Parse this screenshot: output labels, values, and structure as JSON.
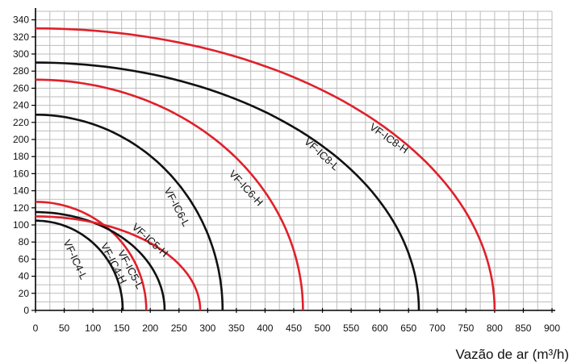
{
  "chart_data": {
    "type": "line",
    "title": "",
    "xlabel": "Vazão de ar (m³/h)",
    "ylabel": "",
    "xlim": [
      0,
      900
    ],
    "ylim": [
      0,
      350
    ],
    "x_ticks": [
      0,
      50,
      100,
      150,
      200,
      250,
      300,
      350,
      400,
      450,
      500,
      550,
      600,
      650,
      700,
      750,
      800,
      850,
      900
    ],
    "y_ticks": [
      0,
      20,
      40,
      60,
      80,
      100,
      120,
      140,
      160,
      180,
      200,
      220,
      240,
      260,
      280,
      300,
      320,
      340
    ],
    "grid": true,
    "series": [
      {
        "name": "VF-IC4-L",
        "color": "#111111",
        "max_flow": 152,
        "max_pressure": 105
      },
      {
        "name": "VF-IC4-H",
        "color": "#e0202a",
        "max_flow": 193,
        "max_pressure": 127
      },
      {
        "name": "VF-IC5-L",
        "color": "#111111",
        "max_flow": 225,
        "max_pressure": 115
      },
      {
        "name": "VF-IC5-H",
        "color": "#e0202a",
        "max_flow": 287,
        "max_pressure": 110
      },
      {
        "name": "VF-IC6-L",
        "color": "#111111",
        "max_flow": 326,
        "max_pressure": 229
      },
      {
        "name": "VF-IC6-H",
        "color": "#e0202a",
        "max_flow": 466,
        "max_pressure": 270
      },
      {
        "name": "VF-IC8-L",
        "color": "#111111",
        "max_flow": 668,
        "max_pressure": 290
      },
      {
        "name": "VF-IC8-H",
        "color": "#e0202a",
        "max_flow": 800,
        "max_pressure": 330
      }
    ]
  }
}
